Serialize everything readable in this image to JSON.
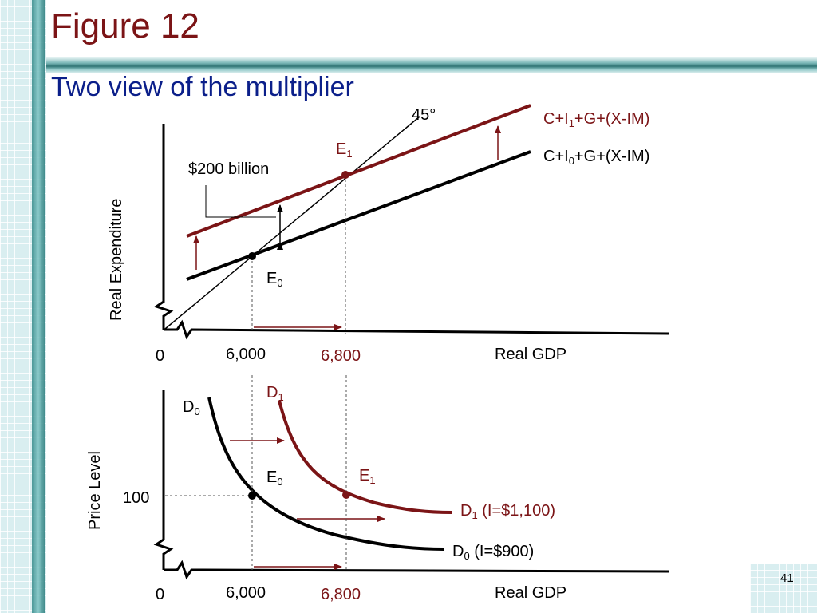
{
  "slide": {
    "title": "Figure 12",
    "subtitle": "Two view of the multiplier",
    "page_number": "41"
  },
  "top_diagram": {
    "y_axis_label": "Real Expenditure",
    "x_axis_label": "Real GDP",
    "origin_label": "0",
    "x_ticks": [
      "6,000",
      "6,800"
    ],
    "line_45_label": "45°",
    "curve_new": {
      "parts": [
        "C+I",
        "1",
        "+G+(X-IM)"
      ],
      "color": "#7b1416"
    },
    "curve_old": {
      "parts": [
        "C+I",
        "0",
        "+G+(X-IM)"
      ],
      "color": "#000000"
    },
    "point_e1": {
      "parts": [
        "E",
        "1"
      ]
    },
    "point_e0": {
      "parts": [
        "E",
        "0"
      ]
    },
    "shift_label": "$200 billion"
  },
  "bottom_diagram": {
    "y_axis_label": "Price Level",
    "x_axis_label": "Real GDP",
    "origin_label": "0",
    "x_ticks": [
      "6,000",
      "6,800"
    ],
    "y_tick": "100",
    "curve_d0_top": {
      "parts": [
        "D",
        "0"
      ]
    },
    "curve_d1_top": {
      "parts": [
        "D",
        "1"
      ]
    },
    "point_e0": {
      "parts": [
        "E",
        "0"
      ]
    },
    "point_e1": {
      "parts": [
        "E",
        "1"
      ]
    },
    "curve_d1_end": {
      "parts": [
        "D",
        "1",
        " (I=$1,100)"
      ]
    },
    "curve_d0_end": {
      "parts": [
        "D",
        "0",
        " (I=$900)"
      ]
    }
  },
  "colors": {
    "accent": "#7b1416",
    "title": "#7b1416",
    "subtitle": "#0b1f8a"
  }
}
